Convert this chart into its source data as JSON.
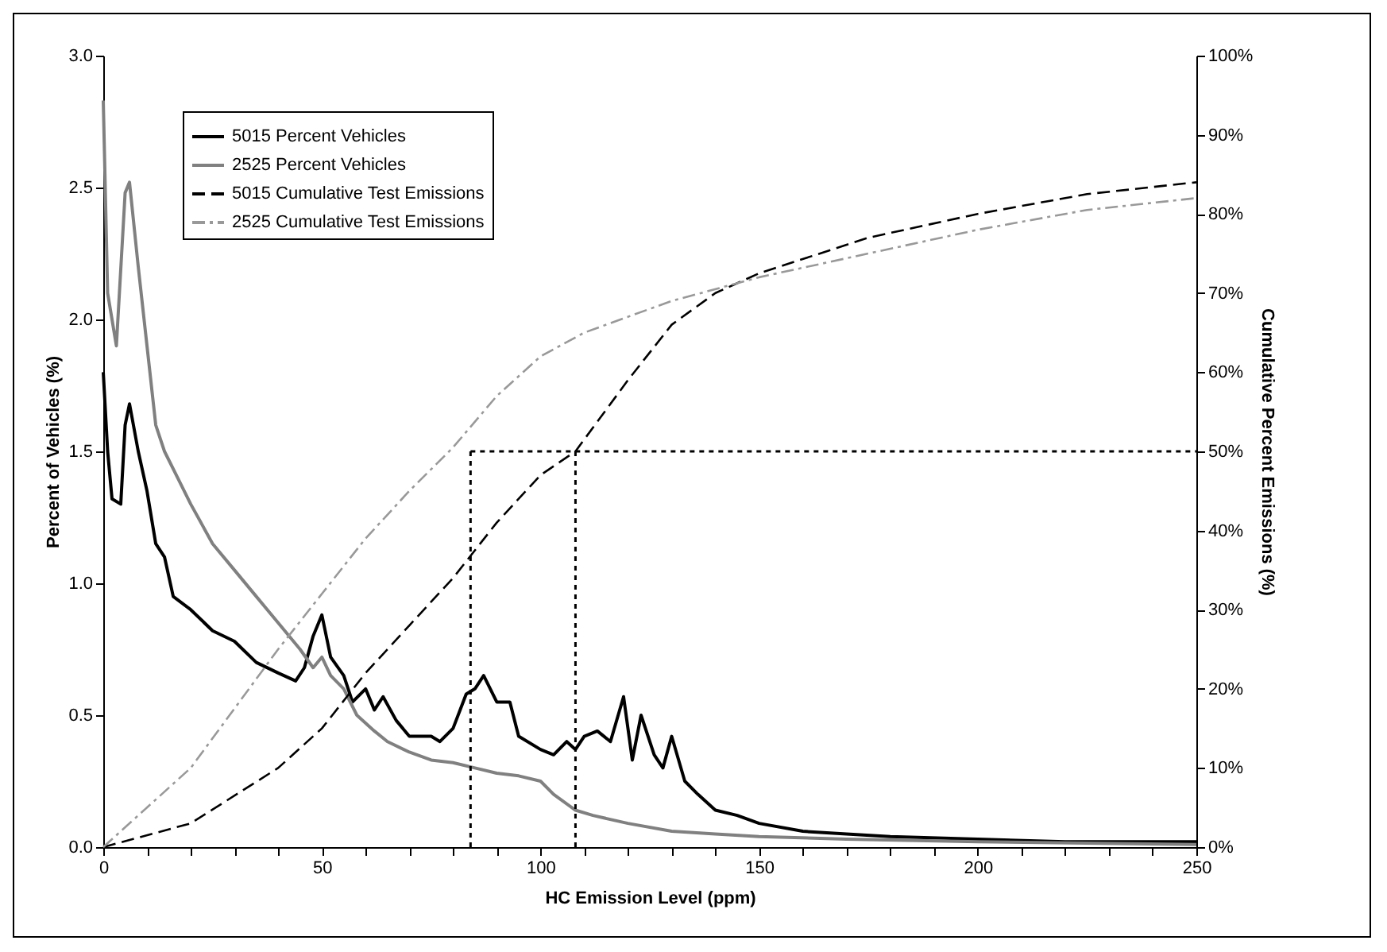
{
  "chart_data": {
    "type": "line",
    "xlabel": "HC Emission Level (ppm)",
    "ylabel": "Percent of Vehicles (%)",
    "y2label": "Cumulative Percent Emissions (%)",
    "xlim": [
      0,
      250
    ],
    "xticks": [
      0,
      {
        "value": 10,
        "label": null
      },
      {
        "value": 20,
        "label": null
      },
      {
        "value": 30,
        "label": null
      },
      {
        "value": 40,
        "label": null
      },
      50,
      {
        "value": 60,
        "label": null
      },
      {
        "value": 70,
        "label": null
      },
      {
        "value": 80,
        "label": null
      },
      {
        "value": 90,
        "label": null
      },
      100,
      {
        "value": 110,
        "label": null
      },
      {
        "value": 120,
        "label": null
      },
      {
        "value": 130,
        "label": null
      },
      {
        "value": 140,
        "label": null
      },
      150,
      {
        "value": 160,
        "label": null
      },
      {
        "value": 170,
        "label": null
      },
      {
        "value": 180,
        "label": null
      },
      {
        "value": 190,
        "label": null
      },
      200,
      {
        "value": 210,
        "label": null
      },
      {
        "value": 220,
        "label": null
      },
      {
        "value": 230,
        "label": null
      },
      {
        "value": 240,
        "label": null
      },
      250
    ],
    "ylim": [
      0,
      3
    ],
    "yticks": [
      {
        "value": 0,
        "label": "0.0"
      },
      0.5,
      {
        "value": 1,
        "label": "1.0"
      },
      1.5,
      {
        "value": 2,
        "label": "2.0"
      },
      2.5,
      {
        "value": 3,
        "label": "3.0"
      }
    ],
    "y2lim": [
      0,
      100
    ],
    "y2ticks": [
      {
        "value": 0,
        "label": "0%"
      },
      {
        "value": 10,
        "label": "10%"
      },
      {
        "value": 20,
        "label": "20%"
      },
      {
        "value": 30,
        "label": "30%"
      },
      {
        "value": 40,
        "label": "40%"
      },
      {
        "value": 50,
        "label": "50%"
      },
      {
        "value": 60,
        "label": "60%"
      },
      {
        "value": 70,
        "label": "70%"
      },
      {
        "value": 80,
        "label": "80%"
      },
      {
        "value": 90,
        "label": "90%"
      },
      {
        "value": 100,
        "label": "100%"
      }
    ],
    "legend": "top left",
    "grid": false,
    "series": [
      {
        "name": "5015 Percent Vehicles",
        "color": "#000000",
        "line_style": "solid",
        "x": [
          0,
          1,
          2,
          4,
          5,
          6,
          8,
          10,
          12,
          14,
          16,
          20,
          25,
          30,
          35,
          40,
          44,
          46,
          48,
          50,
          52,
          55,
          57,
          60,
          62,
          64,
          67,
          70,
          75,
          77,
          80,
          83,
          85,
          87,
          90,
          93,
          95,
          100,
          103,
          106,
          108,
          110,
          113,
          116,
          119,
          121,
          123,
          126,
          128,
          130,
          133,
          136,
          140,
          145,
          150,
          160,
          170,
          180,
          200,
          220,
          250
        ],
        "values": [
          1.8,
          1.5,
          1.32,
          1.3,
          1.6,
          1.68,
          1.5,
          1.35,
          1.15,
          1.1,
          0.95,
          0.9,
          0.82,
          0.78,
          0.7,
          0.66,
          0.63,
          0.68,
          0.8,
          0.88,
          0.72,
          0.65,
          0.55,
          0.6,
          0.52,
          0.57,
          0.48,
          0.42,
          0.42,
          0.4,
          0.45,
          0.58,
          0.6,
          0.65,
          0.55,
          0.55,
          0.42,
          0.37,
          0.35,
          0.4,
          0.37,
          0.42,
          0.44,
          0.4,
          0.57,
          0.33,
          0.5,
          0.35,
          0.3,
          0.42,
          0.25,
          0.2,
          0.14,
          0.12,
          0.09,
          0.06,
          0.05,
          0.04,
          0.03,
          0.02,
          0.02
        ]
      },
      {
        "name": "2525 Percent Vehicles",
        "color": "#808080",
        "line_style": "solid",
        "x": [
          0,
          1,
          3,
          5,
          6,
          8,
          10,
          12,
          14,
          17,
          20,
          25,
          30,
          35,
          40,
          45,
          48,
          50,
          52,
          55,
          58,
          62,
          65,
          70,
          75,
          80,
          85,
          90,
          95,
          100,
          103,
          108,
          112,
          120,
          130,
          140,
          150,
          170,
          200,
          250
        ],
        "values": [
          2.83,
          2.1,
          1.9,
          2.48,
          2.52,
          2.2,
          1.9,
          1.6,
          1.5,
          1.4,
          1.3,
          1.15,
          1.05,
          0.95,
          0.85,
          0.75,
          0.68,
          0.72,
          0.65,
          0.6,
          0.5,
          0.44,
          0.4,
          0.36,
          0.33,
          0.32,
          0.3,
          0.28,
          0.27,
          0.25,
          0.2,
          0.14,
          0.12,
          0.09,
          0.06,
          0.05,
          0.04,
          0.03,
          0.02,
          0.01
        ]
      },
      {
        "name": "5015 Cumulative Test Emissions",
        "color": "#000000",
        "line_style": "dashed",
        "axis": "y2",
        "x": [
          0,
          20,
          40,
          50,
          60,
          70,
          80,
          90,
          100,
          108,
          120,
          130,
          140,
          150,
          175,
          200,
          225,
          250
        ],
        "values": [
          0,
          3,
          10,
          15,
          22,
          28,
          34,
          41,
          47,
          50,
          59,
          66,
          70,
          72.5,
          77,
          80,
          82.5,
          84
        ]
      },
      {
        "name": "2525 Cumulative Test Emissions",
        "color": "#999999",
        "line_style": "dashdot",
        "axis": "y2",
        "x": [
          0,
          20,
          40,
          50,
          60,
          70,
          80,
          90,
          100,
          110,
          130,
          150,
          175,
          200,
          225,
          250
        ],
        "values": [
          0,
          10,
          25,
          32,
          39,
          45,
          50.5,
          57,
          62,
          65,
          69,
          72,
          75,
          78,
          80.5,
          82
        ]
      }
    ],
    "ref_lines": [
      {
        "axis": "y2",
        "value": 50,
        "line_style": "dotted",
        "color": "#000000"
      },
      {
        "axis": "x",
        "value": 84,
        "line_style": "dotted",
        "color": "#000000"
      },
      {
        "axis": "x",
        "value": 108,
        "line_style": "dotted",
        "color": "#000000"
      }
    ]
  }
}
